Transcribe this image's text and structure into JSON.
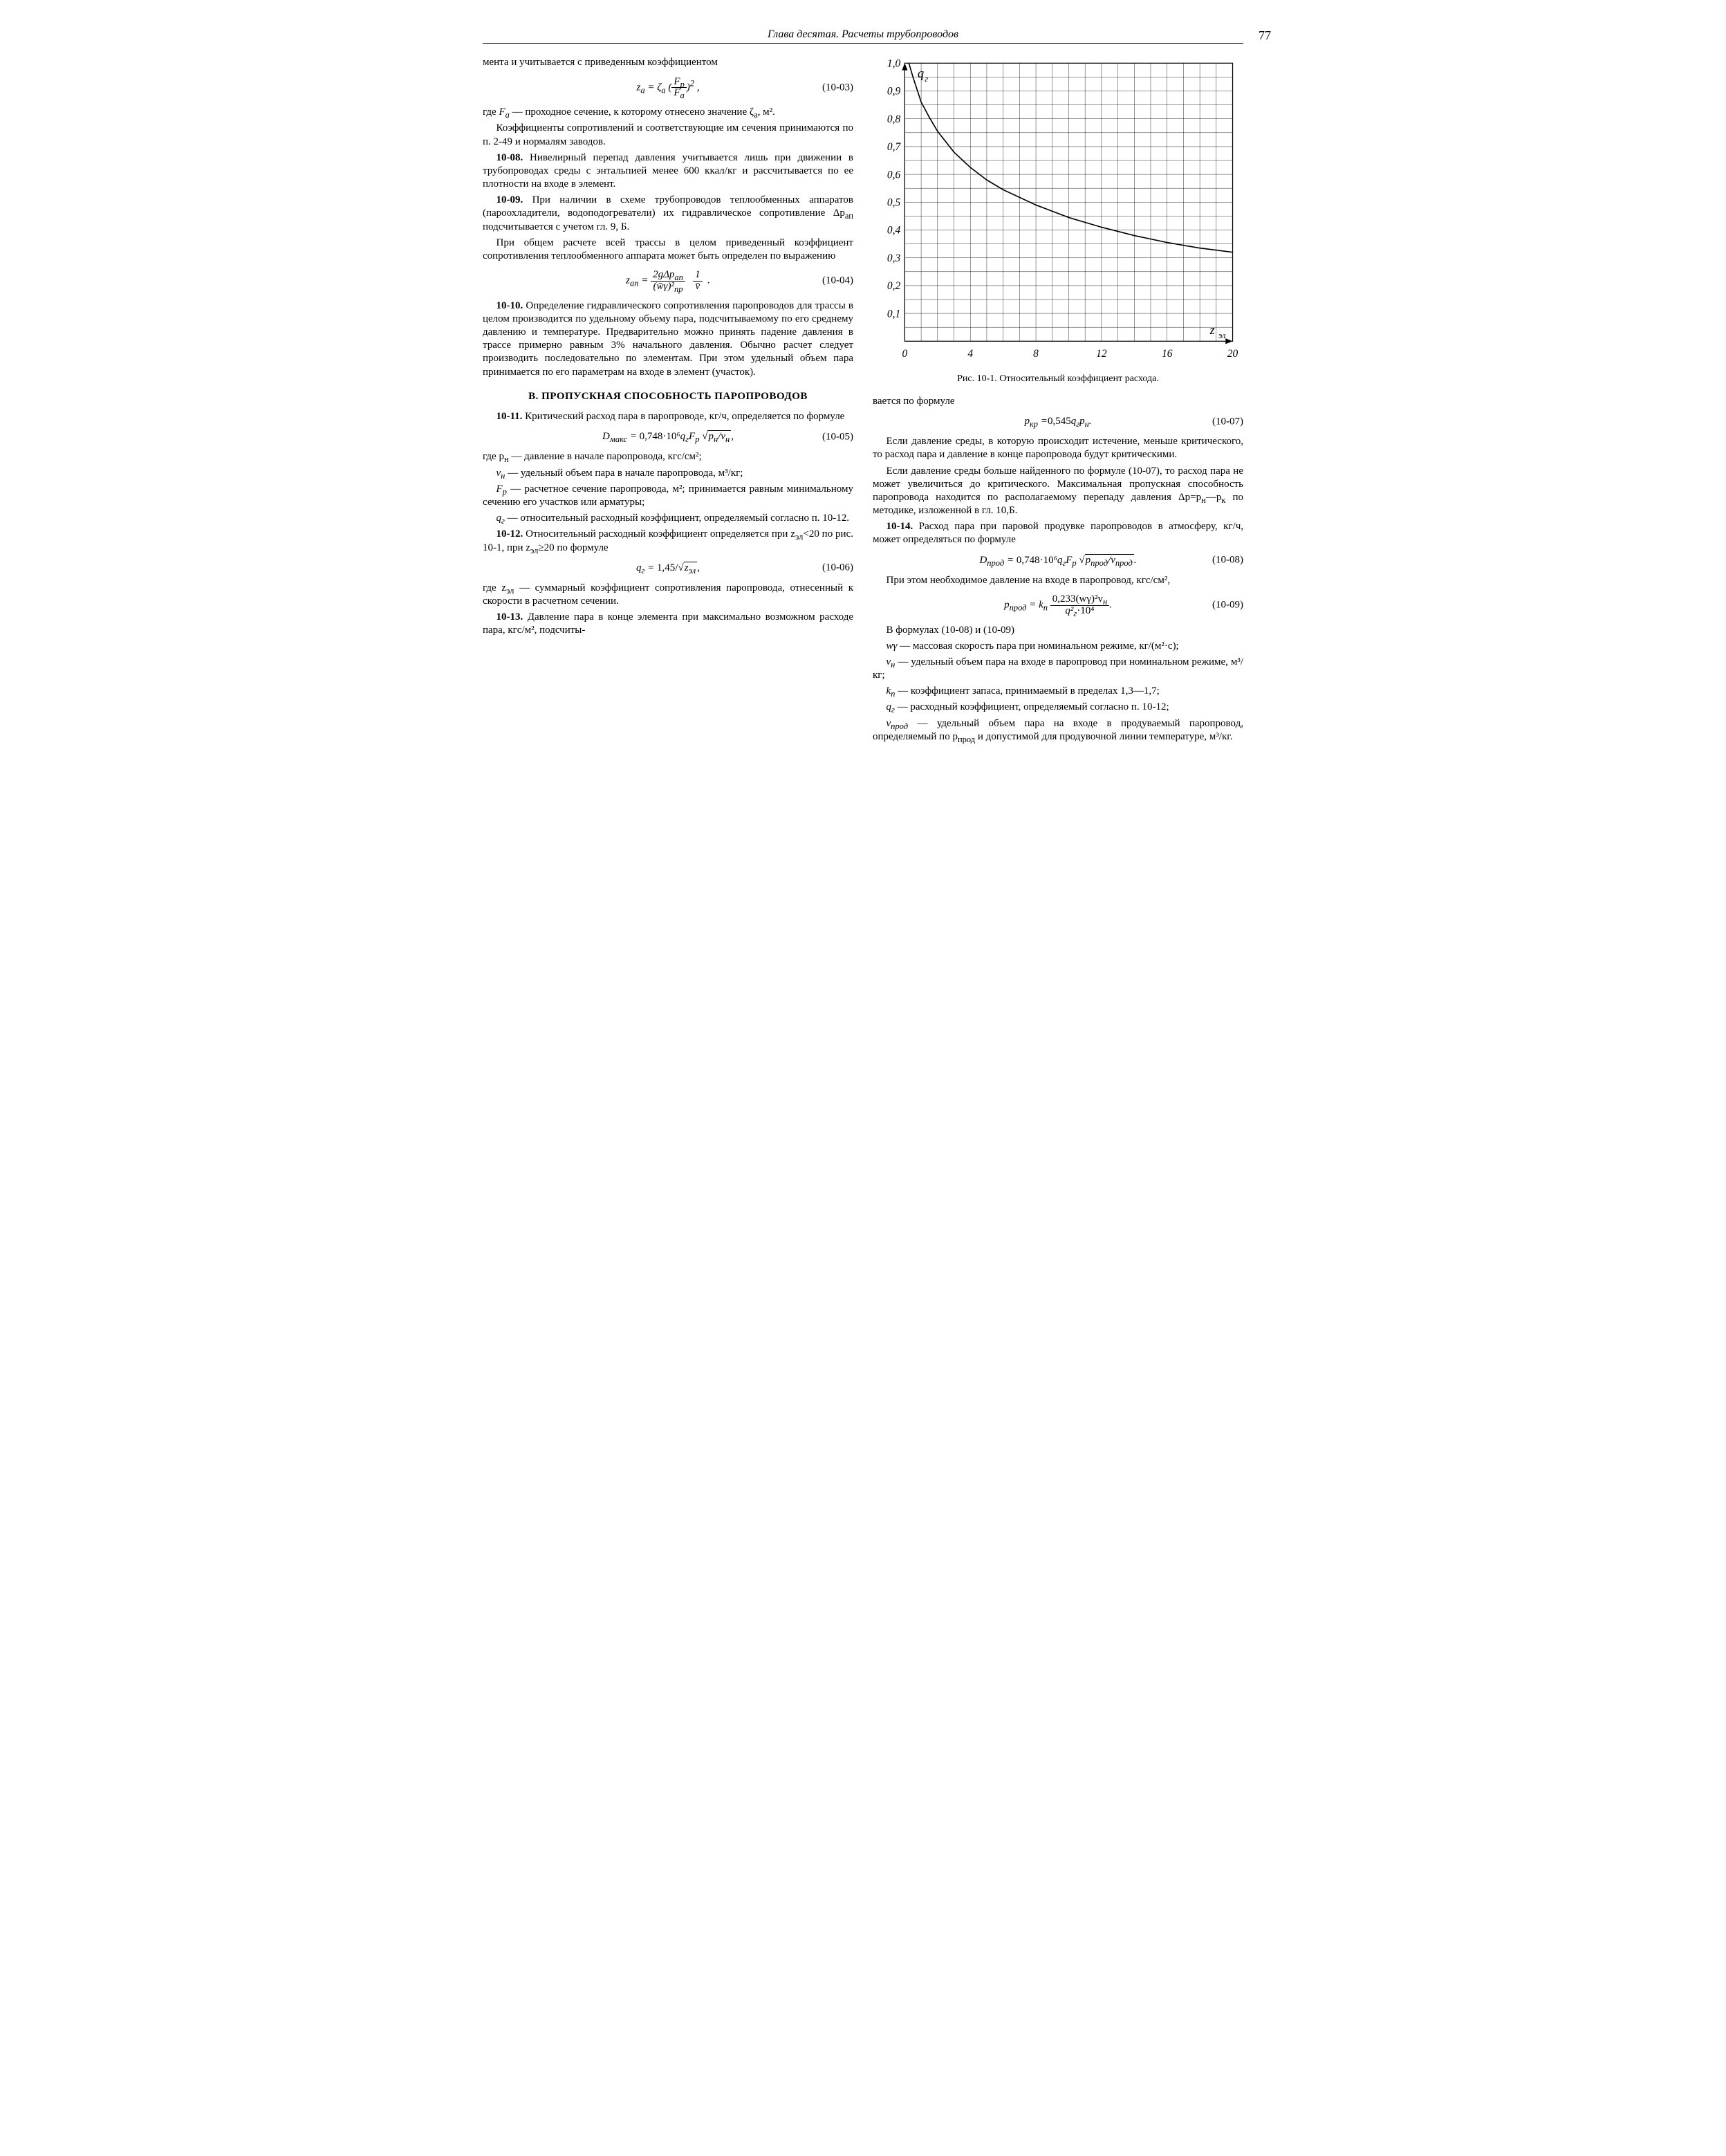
{
  "header": {
    "running": "Глава десятая. Расчеты трубопроводов",
    "page_number": "77"
  },
  "left_column": {
    "p_intro": "мента и учитывается с приведенным коэффициентом",
    "eq_10_03": {
      "lhs": "z",
      "sub_lhs": "a",
      "rhs_zeta": "ζ",
      "sub_zeta": "a",
      "frac_top": "F",
      "frac_top_sub": "р",
      "frac_bot": "F",
      "frac_bot_sub": "a",
      "exp": "2",
      "num": "(10-03)"
    },
    "p_fa_1": "где ",
    "p_fa_fa": "F",
    "p_fa_fa_sub": "a",
    "p_fa_2": " — проходное сечение, к которому отнесено значение ζ",
    "p_fa_2_sub": "a",
    "p_fa_3": ", м².",
    "p_coef": "Коэффициенты сопротивлений и соответствующие им сечения принимаются по п. 2-49 и нормалям заводов.",
    "p_10_08_b": "10-08.",
    "p_10_08": " Нивелирный перепад давления учитывается лишь при движении в трубопроводах среды с энтальпией менее 600 ккал/кг и рассчитывается по ее плотности на входе в элемент.",
    "p_10_09_b": "10-09.",
    "p_10_09": " При наличии в схеме трубопроводов теплообменных аппаратов (пароохладители, водоподогреватели) их гидравлическое сопротивление Δp",
    "p_10_09_sub": "ап",
    "p_10_09_tail": " подсчитывается с учетом гл. 9, Б.",
    "p_overall": "При общем расчете всей трассы в целом приведенный коэффициент сопротивления теплообменного аппарата может быть определен по выражению",
    "eq_10_04": {
      "lhs": "z",
      "sub_lhs": "ап",
      "top1": "2gΔp",
      "top1_sub": "ап",
      "bot1a": "(w̄γ)²",
      "bot1a_sub": "пр",
      "top2": "1",
      "bot2": "v̄",
      "num": "(10-04)"
    },
    "p_10_10_b": "10-10.",
    "p_10_10": " Определение гидравлического сопротивления паропроводов для трассы в целом производится по удельному объему пара, подсчитываемому по его среднему давлению и температуре. Предварительно можно принять падение давления в трассе примерно равным 3% начального давления. Обычно расчет следует производить последовательно по элементам. При этом удельный объем пара принимается по его параметрам на входе в элемент (участок).",
    "section_B": "В. ПРОПУСКНАЯ СПОСОБНОСТЬ ПАРОПРОВОДОВ",
    "p_10_11_b": "10-11.",
    "p_10_11": " Критический расход пара в паропроводе, кг/ч, определяется по формуле",
    "eq_10_05": {
      "lhs": "D",
      "sub_lhs": "макс",
      "coef": "0,748·10⁶",
      "q": "q",
      "q_sub": "г",
      "F": "F",
      "F_sub": "р",
      "sqrt_top": "p",
      "sqrt_top_sub": "н",
      "sqrt_bot": "v",
      "sqrt_bot_sub": "н",
      "num": "(10-05)"
    },
    "p_pn": "где p",
    "p_pn_sub": "н",
    "p_pn_tail": " — давление в начале паропровода, кгс/см²;",
    "p_vn_lead": "v",
    "p_vn_sub": "н",
    "p_vn": " — удельный объем пара в начале паропровода, м³/кг;",
    "p_fp_lead": "F",
    "p_fp_sub": "р",
    "p_fp": " — расчетное сечение паропровода, м²; принимается равным минимальному сечению его участков или арматуры;",
    "p_qg_lead": "q",
    "p_qg_sub": "г",
    "p_qg": " — относительный расходный коэффициент, определяемый согласно п. 10-12.",
    "p_10_12_b": "10-12.",
    "p_10_12": " Относительный расходный коэффициент определяется при z",
    "p_10_12_sub1": "эл",
    "p_10_12_mid": "<20 по рис. 10-1, при z",
    "p_10_12_sub2": "эл",
    "p_10_12_tail": "≥20 по формуле",
    "eq_10_06": {
      "lhs": "q",
      "sub_lhs": "г",
      "coef": "1,45/",
      "sqrt": "z",
      "sqrt_sub": "эл",
      "num": "(10-06)"
    },
    "p_zel": "где z",
    "p_zel_sub": "эл",
    "p_zel_tail": " — суммарный коэффициент сопротивления паропровода, отнесенный к скорости в расчетном сечении.",
    "p_10_13_b": "10-13.",
    "p_10_13": " Давление пара в конце элемента при максимально возможном расходе пара, кгс/м², подсчиты-"
  },
  "right_column": {
    "chart": {
      "type": "line",
      "title_ylabel_inside": "q",
      "title_ylabel_sub": "г",
      "xlabel_inside": "z",
      "xlabel_sub": "эл",
      "xlim": [
        0,
        20
      ],
      "ylim": [
        0,
        1.0
      ],
      "xtick_step": 4,
      "xtick_minor": 1,
      "ytick_step": 0.1,
      "ytick_minor": 0.05,
      "x_ticks": [
        "0",
        "4",
        "8",
        "12",
        "16",
        "20"
      ],
      "y_ticks": [
        "0,1",
        "0,2",
        "0,3",
        "0,4",
        "0,5",
        "0,6",
        "0,7",
        "0,8",
        "0,9",
        "1,0"
      ],
      "line_color": "#000000",
      "grid_color": "#000000",
      "background_color": "#ffffff",
      "line_width": 1.6,
      "grid_width": 0.6,
      "points": [
        [
          0.25,
          1.0
        ],
        [
          0.5,
          0.95
        ],
        [
          1.0,
          0.86
        ],
        [
          1.5,
          0.805
        ],
        [
          2.0,
          0.755
        ],
        [
          3.0,
          0.68
        ],
        [
          4.0,
          0.625
        ],
        [
          5.0,
          0.58
        ],
        [
          6.0,
          0.545
        ],
        [
          8.0,
          0.49
        ],
        [
          10.0,
          0.445
        ],
        [
          12.0,
          0.41
        ],
        [
          14.0,
          0.38
        ],
        [
          16.0,
          0.355
        ],
        [
          18.0,
          0.335
        ],
        [
          20.0,
          0.32
        ]
      ]
    },
    "fig_caption": "Рис. 10-1. Относительный коэффициент расхода.",
    "p_cont": "вается по формуле",
    "eq_10_07": {
      "lhs": "p",
      "sub_lhs": "кр",
      "coef": "0,545",
      "q": "q",
      "q_sub": "г",
      "p": "p",
      "p_sub": "н",
      "num": "(10-07)"
    },
    "p_if1": "Если давление среды, в которую происходит истечение, меньше критического, то расход пара и давление в конце паропровода будут критическими.",
    "p_if2a": "Если давление среды больше найденного по формуле (10-07), то расход пара не может увеличиться до критического. Максимальная пропускная способность паропровода находится по располагаемому перепаду давления  Δp=p",
    "p_if2a_sub1": "н",
    "p_if2a_mid": "—p",
    "p_if2a_sub2": "к",
    "p_if2a_tail": "  по  методике,  изложенной в гл. 10,Б.",
    "p_10_14_b": "10-14.",
    "p_10_14": " Расход пара при паровой продувке паропроводов в атмосферу, кг/ч, может определяться по формуле",
    "eq_10_08": {
      "lhs": "D",
      "sub_lhs": "прод",
      "coef": "0,748·10⁶",
      "q": "q",
      "q_sub": "г",
      "F": "F",
      "F_sub": "р",
      "sqrt_top": "p",
      "sqrt_top_sub": "прод",
      "sqrt_bot": "v",
      "sqrt_bot_sub": "прод",
      "num": "(10-08)"
    },
    "p_need": "При этом необходимое давление на входе в паропровод, кгс/см²,",
    "eq_10_09": {
      "lhs": "p",
      "sub_lhs": "прод",
      "k": "k",
      "k_sub": "п",
      "top": "0,233(wγ)²v",
      "top_sub": "н",
      "bot": "q²",
      "bot_sub": "г",
      "bot_tail": "·10⁴",
      "num": "(10-09)"
    },
    "p_in_f": "В формулах (10-08) и (10-09)",
    "p_wv_lead": "wγ",
    "p_wv": " — массовая скорость пара при номинальном режиме, кг/(м²·с);",
    "p_vn2_lead": "v",
    "p_vn2_sub": "н",
    "p_vn2": " — удельный объем пара на входе в паропровод при номинальном режиме, м³/кг;",
    "p_kn_lead": "k",
    "p_kn_sub": "п",
    "p_kn": " — коэффициент запаса, принимаемый в пределах 1,3—1,7;",
    "p_qg2_lead": "q",
    "p_qg2_sub": "г",
    "p_qg2": " — расходный коэффициент, определяемый согласно п. 10-12;",
    "p_vprod_lead": "v",
    "p_vprod_sub": "прод",
    "p_vprod": " — удельный объем пара на входе в продуваемый паропровод, определяемый по p",
    "p_vprod_sub2": "прод",
    "p_vprod_tail": " и допустимой для продувочной линии температуре, м³/кг."
  }
}
